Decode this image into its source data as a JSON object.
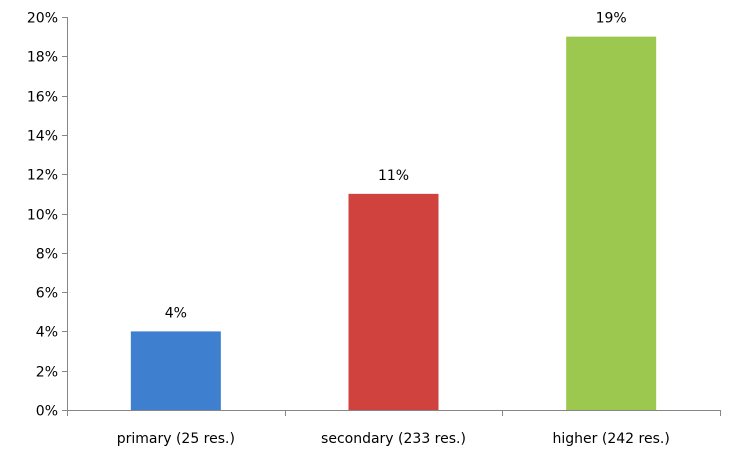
{
  "chart_data": {
    "type": "bar",
    "categories": [
      "primary (25 res.)",
      "secondary (233 res.)",
      "higher (242 res.)"
    ],
    "values": [
      4,
      11,
      19
    ],
    "data_labels": [
      "4%",
      "11%",
      "19%"
    ],
    "colors": [
      "#3F7FCF",
      "#D0423E",
      "#9DC84F"
    ],
    "ylim": [
      0,
      20
    ],
    "yticks": [
      0,
      2,
      4,
      6,
      8,
      10,
      12,
      14,
      16,
      18,
      20
    ],
    "ytick_labels": [
      "0%",
      "2%",
      "4%",
      "6%",
      "8%",
      "10%",
      "12%",
      "14%",
      "16%",
      "18%",
      "20%"
    ],
    "grid": false,
    "legend": "none"
  }
}
